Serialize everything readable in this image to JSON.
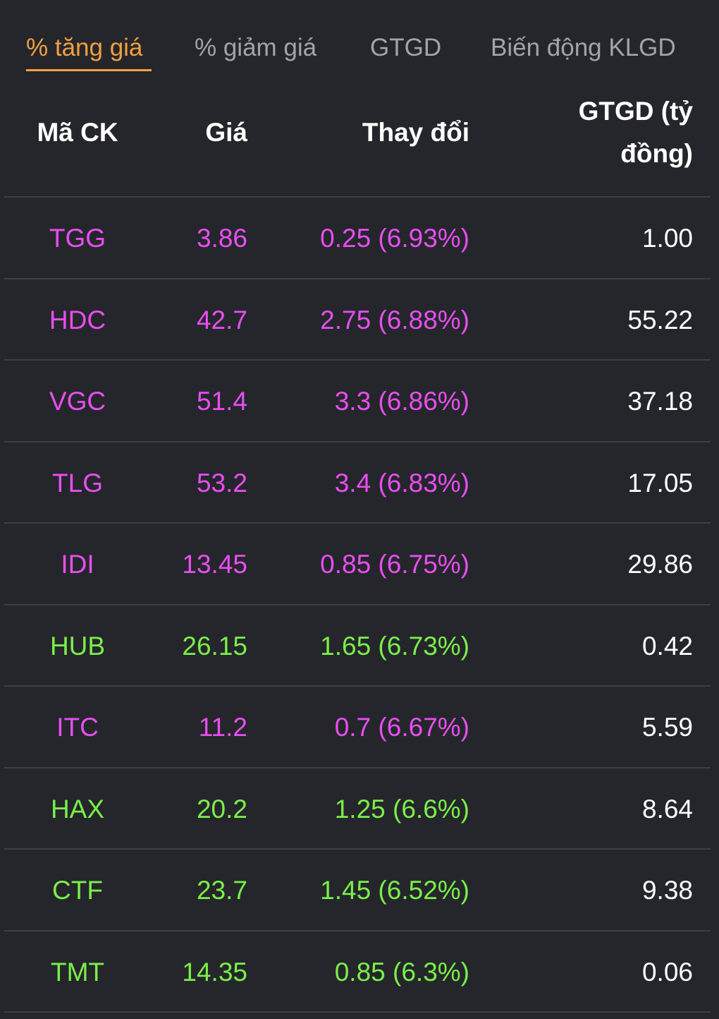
{
  "tabs": [
    {
      "label": "% tăng giá",
      "active": true
    },
    {
      "label": "% giảm giá",
      "active": false
    },
    {
      "label": "GTGD",
      "active": false
    },
    {
      "label": "Biến động KLGD",
      "active": false
    }
  ],
  "table": {
    "headers": {
      "symbol": "Mã CK",
      "price": "Giá",
      "change": "Thay đổi",
      "value": "GTGD (tỷ đồng)"
    },
    "rows": [
      {
        "symbol": "TGG",
        "price": "3.86",
        "change": "0.25 (6.93%)",
        "value": "1.00",
        "color": "#e84ef2"
      },
      {
        "symbol": "HDC",
        "price": "42.7",
        "change": "2.75 (6.88%)",
        "value": "55.22",
        "color": "#e84ef2"
      },
      {
        "symbol": "VGC",
        "price": "51.4",
        "change": "3.3 (6.86%)",
        "value": "37.18",
        "color": "#e84ef2"
      },
      {
        "symbol": "TLG",
        "price": "53.2",
        "change": "3.4 (6.83%)",
        "value": "17.05",
        "color": "#e84ef2"
      },
      {
        "symbol": "IDI",
        "price": "13.45",
        "change": "0.85 (6.75%)",
        "value": "29.86",
        "color": "#e84ef2"
      },
      {
        "symbol": "HUB",
        "price": "26.15",
        "change": "1.65 (6.73%)",
        "value": "0.42",
        "color": "#7af049"
      },
      {
        "symbol": "ITC",
        "price": "11.2",
        "change": "0.7 (6.67%)",
        "value": "5.59",
        "color": "#e84ef2"
      },
      {
        "symbol": "HAX",
        "price": "20.2",
        "change": "1.25 (6.6%)",
        "value": "8.64",
        "color": "#7af049"
      },
      {
        "symbol": "CTF",
        "price": "23.7",
        "change": "1.45 (6.52%)",
        "value": "9.38",
        "color": "#7af049"
      },
      {
        "symbol": "TMT",
        "price": "14.35",
        "change": "0.85 (6.3%)",
        "value": "0.06",
        "color": "#7af049"
      }
    ]
  },
  "colors": {
    "background": "#25262b",
    "active_tab": "#f0a040",
    "inactive_tab": "#a3a4a8",
    "ceiling": "#e84ef2",
    "up": "#7af049",
    "divider": "#3e3f44"
  }
}
